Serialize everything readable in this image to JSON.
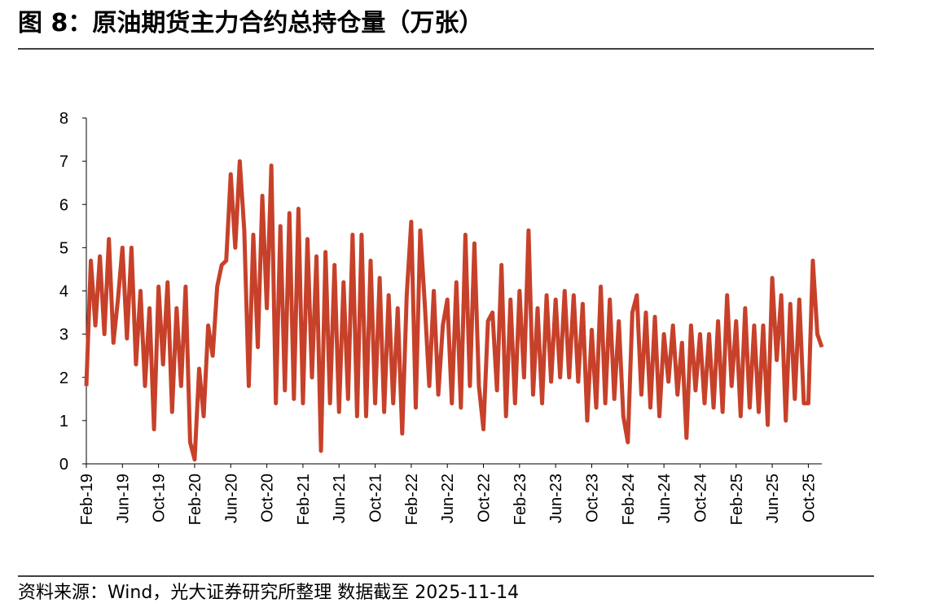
{
  "title": "图 8：原油期货主力合约总持仓量（万张）",
  "source": "资料来源：Wind，光大证券研究所整理  数据截至 2025-11-14",
  "chart_data": {
    "type": "line",
    "categories": [
      "Feb-19",
      null,
      null,
      null,
      null,
      null,
      null,
      null,
      "Jun-19",
      null,
      null,
      null,
      null,
      null,
      null,
      null,
      "Oct-19",
      null,
      null,
      null,
      null,
      null,
      null,
      null,
      "Feb-20",
      null,
      null,
      null,
      null,
      null,
      null,
      null,
      "Jun-20",
      null,
      null,
      null,
      null,
      null,
      null,
      null,
      "Oct-20",
      null,
      null,
      null,
      null,
      null,
      null,
      null,
      "Feb-21",
      null,
      null,
      null,
      null,
      null,
      null,
      null,
      "Jun-21",
      null,
      null,
      null,
      null,
      null,
      null,
      null,
      "Oct-21",
      null,
      null,
      null,
      null,
      null,
      null,
      null,
      "Feb-22",
      null,
      null,
      null,
      null,
      null,
      null,
      null,
      "Jun-22",
      null,
      null,
      null,
      null,
      null,
      null,
      null,
      "Oct-22",
      null,
      null,
      null,
      null,
      null,
      null,
      null,
      "Feb-23",
      null,
      null,
      null,
      null,
      null,
      null,
      null,
      "Jun-23",
      null,
      null,
      null,
      null,
      null,
      null,
      null,
      "Oct-23",
      null,
      null,
      null,
      null,
      null,
      null,
      null,
      "Feb-24",
      null,
      null,
      null,
      null,
      null,
      null,
      null,
      "Jun-24",
      null,
      null,
      null,
      null,
      null,
      null,
      null,
      "Oct-24",
      null,
      null,
      null,
      null,
      null,
      null,
      null,
      "Feb-25",
      null,
      null,
      null,
      null,
      null,
      null,
      null,
      "Jun-25",
      null,
      null,
      null,
      null,
      null,
      null,
      null,
      "Oct-25",
      null,
      null,
      null
    ],
    "values": [
      1.8,
      4.7,
      3.2,
      4.8,
      3.0,
      5.2,
      2.8,
      3.8,
      5.0,
      2.9,
      5.0,
      2.3,
      4.0,
      1.8,
      3.6,
      0.8,
      4.1,
      2.3,
      4.2,
      1.2,
      3.6,
      1.8,
      4.1,
      0.5,
      0.1,
      2.2,
      1.1,
      3.2,
      2.5,
      4.1,
      4.6,
      4.7,
      6.7,
      5.0,
      7.0,
      5.4,
      1.8,
      5.3,
      2.7,
      6.2,
      3.6,
      6.9,
      1.4,
      5.5,
      1.7,
      5.8,
      1.5,
      5.9,
      1.4,
      5.2,
      2.0,
      4.8,
      0.3,
      4.9,
      1.4,
      4.6,
      1.2,
      4.2,
      1.5,
      5.3,
      1.1,
      5.3,
      1.1,
      4.7,
      1.4,
      4.3,
      1.2,
      3.9,
      1.4,
      3.6,
      0.7,
      3.9,
      5.6,
      1.3,
      5.4,
      3.7,
      1.8,
      4.0,
      1.6,
      3.2,
      3.8,
      1.4,
      4.2,
      1.3,
      5.3,
      1.8,
      5.1,
      1.8,
      0.8,
      3.3,
      3.5,
      1.7,
      4.6,
      1.1,
      3.8,
      1.4,
      4.0,
      2.0,
      5.4,
      1.6,
      3.6,
      1.4,
      3.9,
      1.9,
      3.8,
      2.0,
      4.0,
      2.0,
      3.9,
      1.9,
      3.7,
      1.0,
      3.1,
      1.3,
      4.1,
      1.4,
      3.8,
      1.5,
      3.3,
      1.1,
      0.5,
      3.5,
      3.9,
      1.6,
      3.5,
      1.3,
      3.4,
      1.1,
      3.0,
      1.9,
      3.2,
      1.6,
      2.8,
      0.6,
      3.2,
      1.7,
      3.0,
      1.4,
      3.0,
      1.3,
      3.3,
      1.2,
      3.9,
      1.8,
      3.3,
      1.1,
      3.6,
      1.3,
      3.2,
      1.2,
      3.2,
      0.9,
      4.3,
      2.4,
      3.9,
      1.0,
      3.7,
      1.5,
      3.8,
      1.4,
      1.4,
      4.7,
      3.0,
      2.7
    ],
    "color": "#c7412a",
    "ylim": [
      0,
      8
    ],
    "yticks": [
      0,
      1,
      2,
      3,
      4,
      5,
      6,
      7,
      8
    ]
  }
}
